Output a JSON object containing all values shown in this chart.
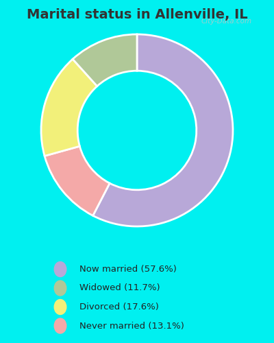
{
  "title": "Marital status in Allenville, IL",
  "values": [
    57.6,
    13.1,
    17.6,
    11.7
  ],
  "colors": [
    "#b8a8d8",
    "#f4a9a8",
    "#f2f07a",
    "#b0c898"
  ],
  "startangle": 90,
  "legend_labels": [
    "Now married (57.6%)",
    "Widowed (11.7%)",
    "Divorced (17.6%)",
    "Never married (13.1%)"
  ],
  "legend_colors": [
    "#b8a8d8",
    "#b0c898",
    "#f2f07a",
    "#f4a9a8"
  ],
  "background_color": "#c8e8d0",
  "outer_background": "#00f0f0",
  "title_fontsize": 14,
  "watermark": "City-Data.com",
  "donut_width": 0.38
}
